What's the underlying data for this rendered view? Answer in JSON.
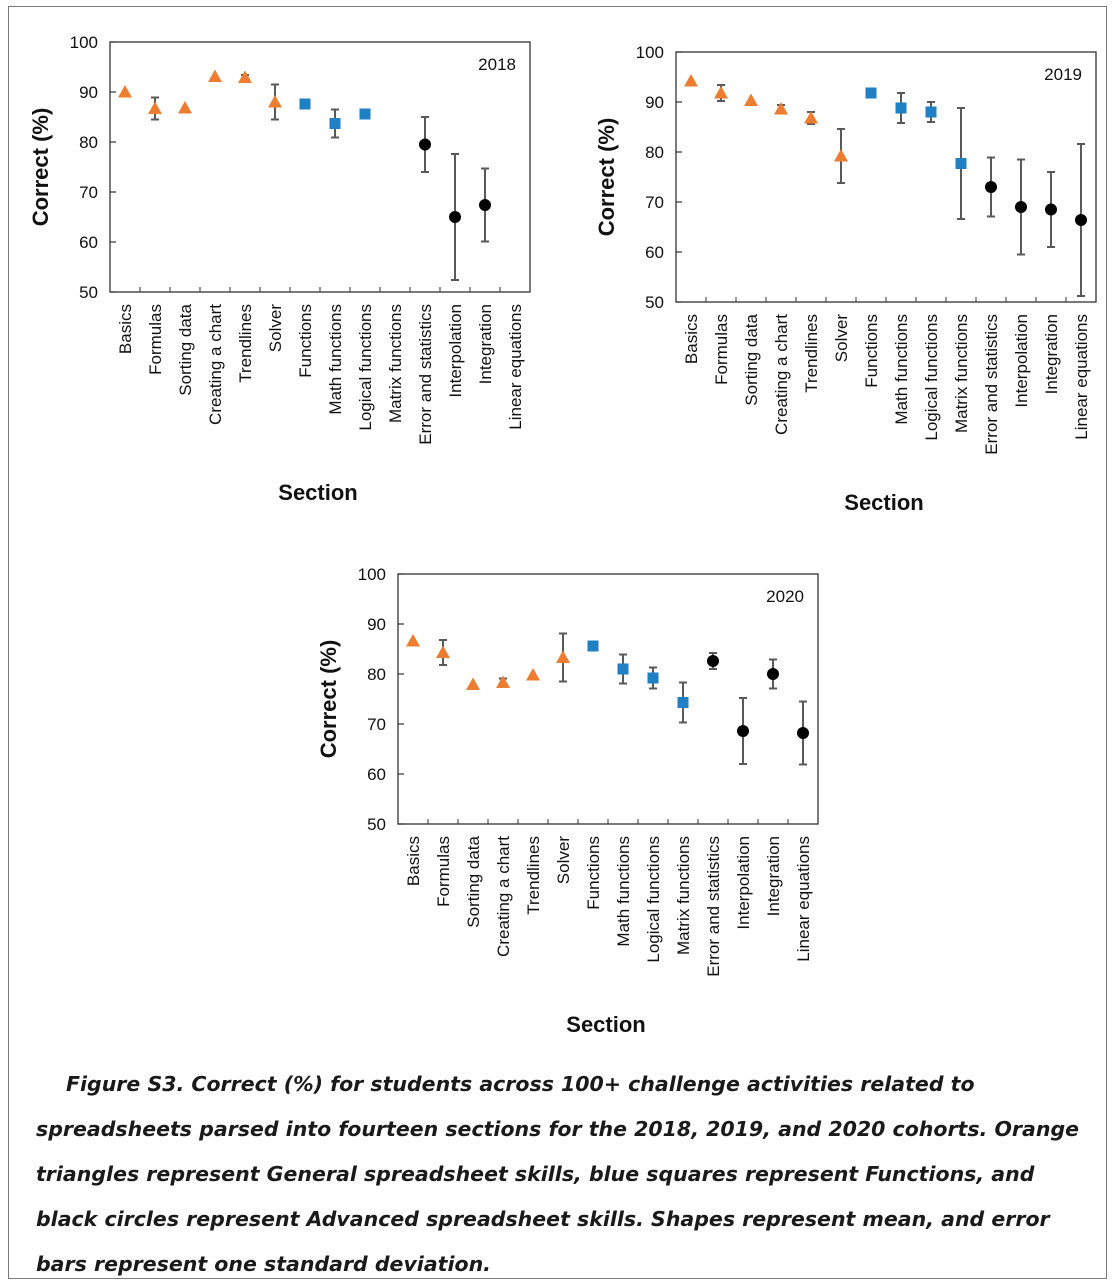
{
  "caption": "Figure S3. Correct (%) for students across 100+ challenge activities related to spreadsheets parsed into fourteen sections for the 2018, 2019, and 2020 cohorts. Orange triangles represent General spreadsheet skills, blue squares represent Functions, and black circles represent Advanced spreadsheet skills. Shapes represent mean, and error bars represent one standard deviation.",
  "colors": {
    "triangle": "#ED7D31",
    "square": "#1F80C4",
    "circle": "#000000",
    "errorbar": "#595959"
  },
  "chart_data": [
    {
      "type": "scatter",
      "title": "2018",
      "xlabel": "Section",
      "ylabel": "Correct (%)",
      "ylim": [
        50,
        100
      ],
      "yticks": [
        "50",
        "60",
        "70",
        "80",
        "90",
        "100"
      ],
      "grid": false,
      "categories": [
        "Basics",
        "Formulas",
        "Sorting data",
        "Creating a chart",
        "Trendlines",
        "Solver",
        "Functions",
        "Math functions",
        "Logical functions",
        "Matrix functions",
        "Error and statistics",
        "Interpolation",
        "Integration",
        "Linear equations"
      ],
      "points": [
        {
          "category": "Basics",
          "marker": "triangle",
          "mean": 90,
          "sd": null
        },
        {
          "category": "Formulas",
          "marker": "triangle",
          "mean": 86.7,
          "sd": 2.2
        },
        {
          "category": "Sorting data",
          "marker": "triangle",
          "mean": 86.8,
          "sd": null
        },
        {
          "category": "Creating a chart",
          "marker": "triangle",
          "mean": 93.1,
          "sd": null
        },
        {
          "category": "Trendlines",
          "marker": "triangle",
          "mean": 92.9,
          "sd": 0.5
        },
        {
          "category": "Solver",
          "marker": "triangle",
          "mean": 88,
          "sd": 3.5
        },
        {
          "category": "Functions",
          "marker": "square",
          "mean": 87.6,
          "sd": null
        },
        {
          "category": "Math functions",
          "marker": "square",
          "mean": 83.7,
          "sd": 2.8
        },
        {
          "category": "Logical functions",
          "marker": "square",
          "mean": 85.6,
          "sd": 0.6
        },
        {
          "category": "Error and statistics",
          "marker": "circle",
          "mean": 79.5,
          "sd": 5.5
        },
        {
          "category": "Interpolation",
          "marker": "circle",
          "mean": 65,
          "sd": 12.6
        },
        {
          "category": "Integration",
          "marker": "circle",
          "mean": 67.4,
          "sd": 7.3
        }
      ]
    },
    {
      "type": "scatter",
      "title": "2019",
      "xlabel": "Section",
      "ylabel": "Correct (%)",
      "ylim": [
        50,
        100
      ],
      "yticks": [
        "50",
        "60",
        "70",
        "80",
        "90",
        "100"
      ],
      "grid": false,
      "categories": [
        "Basics",
        "Formulas",
        "Sorting data",
        "Creating a chart",
        "Trendlines",
        "Solver",
        "Functions",
        "Math functions",
        "Logical functions",
        "Matrix functions",
        "Error and statistics",
        "Interpolation",
        "Integration",
        "Linear equations"
      ],
      "points": [
        {
          "category": "Basics",
          "marker": "triangle",
          "mean": 94.2,
          "sd": null
        },
        {
          "category": "Formulas",
          "marker": "triangle",
          "mean": 91.8,
          "sd": 1.6
        },
        {
          "category": "Sorting data",
          "marker": "triangle",
          "mean": 90.3,
          "sd": null
        },
        {
          "category": "Creating a chart",
          "marker": "triangle",
          "mean": 88.6,
          "sd": 0.8
        },
        {
          "category": "Trendlines",
          "marker": "triangle",
          "mean": 86.8,
          "sd": 1.2
        },
        {
          "category": "Solver",
          "marker": "triangle",
          "mean": 79.2,
          "sd": 5.4
        },
        {
          "category": "Functions",
          "marker": "square",
          "mean": 91.8,
          "sd": null
        },
        {
          "category": "Math functions",
          "marker": "square",
          "mean": 88.8,
          "sd": 3
        },
        {
          "category": "Logical functions",
          "marker": "square",
          "mean": 88,
          "sd": 2
        },
        {
          "category": "Matrix functions",
          "marker": "square",
          "mean": 77.7,
          "sd": 11.1
        },
        {
          "category": "Error and statistics",
          "marker": "circle",
          "mean": 73,
          "sd": 5.9
        },
        {
          "category": "Interpolation",
          "marker": "circle",
          "mean": 69,
          "sd": 9.5
        },
        {
          "category": "Integration",
          "marker": "circle",
          "mean": 68.5,
          "sd": 7.5
        },
        {
          "category": "Linear equations",
          "marker": "circle",
          "mean": 66.4,
          "sd": 15.2
        }
      ]
    },
    {
      "type": "scatter",
      "title": "2020",
      "xlabel": "Section",
      "ylabel": "Correct (%)",
      "ylim": [
        50,
        100
      ],
      "yticks": [
        "50",
        "60",
        "70",
        "80",
        "90",
        "100"
      ],
      "grid": false,
      "categories": [
        "Basics",
        "Formulas",
        "Sorting data",
        "Creating a chart",
        "Trendlines",
        "Solver",
        "Functions",
        "Math functions",
        "Logical functions",
        "Matrix functions",
        "Error and statistics",
        "Interpolation",
        "Integration",
        "Linear equations"
      ],
      "points": [
        {
          "category": "Basics",
          "marker": "triangle",
          "mean": 86.6,
          "sd": null
        },
        {
          "category": "Formulas",
          "marker": "triangle",
          "mean": 84.3,
          "sd": 2.5
        },
        {
          "category": "Sorting data",
          "marker": "triangle",
          "mean": 77.9,
          "sd": null
        },
        {
          "category": "Creating a chart",
          "marker": "triangle",
          "mean": 78.3,
          "sd": 0.8
        },
        {
          "category": "Trendlines",
          "marker": "triangle",
          "mean": 79.8,
          "sd": null
        },
        {
          "category": "Solver",
          "marker": "triangle",
          "mean": 83.3,
          "sd": 4.8
        },
        {
          "category": "Functions",
          "marker": "square",
          "mean": 85.6,
          "sd": null
        },
        {
          "category": "Math functions",
          "marker": "square",
          "mean": 81,
          "sd": 2.9
        },
        {
          "category": "Logical functions",
          "marker": "square",
          "mean": 79.2,
          "sd": 2.1
        },
        {
          "category": "Matrix functions",
          "marker": "square",
          "mean": 74.3,
          "sd": 4
        },
        {
          "category": "Error and statistics",
          "marker": "circle",
          "mean": 82.6,
          "sd": 1.6
        },
        {
          "category": "Interpolation",
          "marker": "circle",
          "mean": 68.6,
          "sd": 6.6
        },
        {
          "category": "Integration",
          "marker": "circle",
          "mean": 80,
          "sd": 2.9
        },
        {
          "category": "Linear equations",
          "marker": "circle",
          "mean": 68.2,
          "sd": 6.3
        }
      ]
    }
  ]
}
